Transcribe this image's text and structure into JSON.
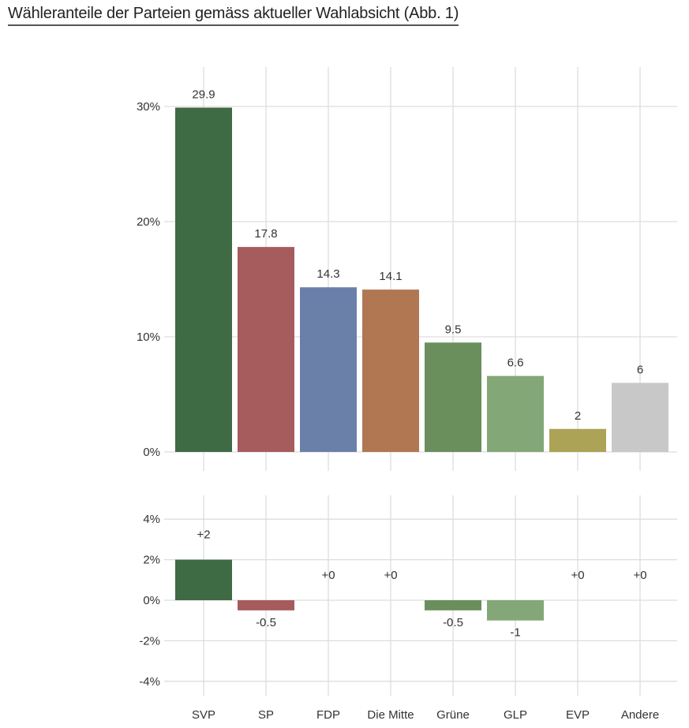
{
  "title": "Wähleranteile der Parteien gemäss aktueller Wahlabsicht  (Abb. 1)",
  "chart_data": [
    {
      "type": "bar",
      "categories": [
        "SVP",
        "SP",
        "FDP",
        "Die Mitte",
        "Grüne",
        "GLP",
        "EVP",
        "Andere"
      ],
      "values": [
        29.9,
        17.8,
        14.3,
        14.1,
        9.5,
        6.6,
        2,
        6
      ],
      "data_labels": [
        "29.9",
        "17.8",
        "14.3",
        "14.1",
        "9.5",
        "6.6",
        "2",
        "6"
      ],
      "colors": [
        "#3e6a44",
        "#a65b5d",
        "#6a80a9",
        "#b07752",
        "#6a8f5d",
        "#84a778",
        "#ada356",
        "#c8c8c8"
      ],
      "yticks": [
        "0%",
        "10%",
        "20%",
        "30%"
      ],
      "ytick_values": [
        0,
        10,
        20,
        30
      ],
      "ylim": [
        0,
        30
      ],
      "grid": true
    },
    {
      "type": "bar",
      "categories": [
        "SVP",
        "SP",
        "FDP",
        "Die Mitte",
        "Grüne",
        "GLP",
        "EVP",
        "Andere"
      ],
      "values": [
        2,
        -0.5,
        0,
        0,
        -0.5,
        -1,
        0,
        0
      ],
      "data_labels": [
        "+2",
        "-0.5",
        "+0",
        "+0",
        "-0.5",
        "-1",
        "+0",
        "+0"
      ],
      "colors": [
        "#3e6a44",
        "#a65b5d",
        "#6a80a9",
        "#b07752",
        "#6a8f5d",
        "#84a778",
        "#ada356",
        "#c8c8c8"
      ],
      "yticks": [
        "-4%",
        "-2%",
        "0%",
        "2%",
        "4%"
      ],
      "ytick_values": [
        -4,
        -2,
        0,
        2,
        4
      ],
      "ylim": [
        -4,
        4
      ],
      "grid": true
    }
  ]
}
